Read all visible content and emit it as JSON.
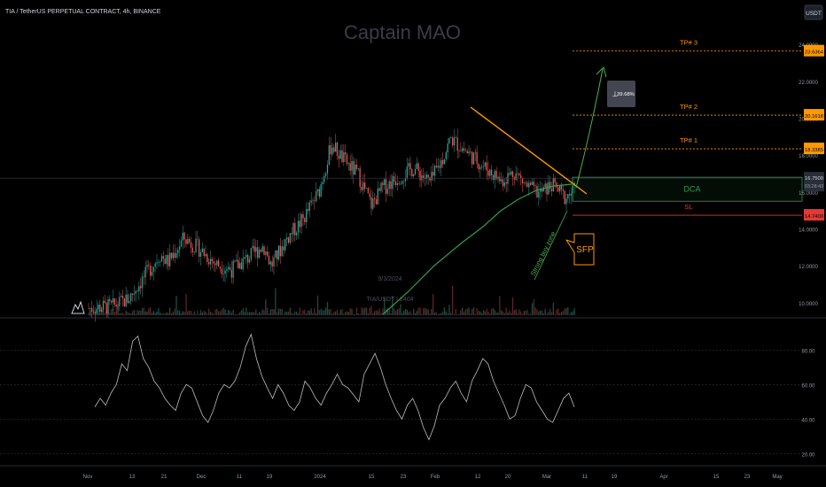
{
  "header": {
    "symbol_line": "TIA / TetherUS PERPETUAL CONTRACT, 4h, BINANCE",
    "currency": "USDT"
  },
  "watermark": "Captain MAO",
  "faint_text": [
    "9/3/2024",
    "TIA/USDT | 2404"
  ],
  "colors": {
    "background": "#000000",
    "up": "#26a69a",
    "down": "#ef5350",
    "ma": "#2e9e52",
    "tp": "#ff9800",
    "sl": "#e53935",
    "dca": "#2e9e52",
    "trend": "#ff9800",
    "rsi": "#bdbdbd",
    "projection": "#4caf50"
  },
  "chart_data": [
    {
      "type": "candlestick",
      "title": "",
      "price_axis_ticks": [
        "24.0000",
        "22.0000",
        "20.0000",
        "18.0000",
        "16.0000",
        "14.0000",
        "12.0000",
        "10.0000"
      ],
      "ylim": [
        9.3,
        25.2
      ],
      "x_axis_ticks": [
        "Nov",
        "13",
        "21",
        "Dec",
        "11",
        "19",
        "2024",
        "15",
        "23",
        "Feb",
        "12",
        "20",
        "Mar",
        "11",
        "19",
        "Apr",
        "15",
        "23",
        "May"
      ],
      "close_path": [
        [
          0,
          9.7
        ],
        [
          15,
          9.8
        ],
        [
          25,
          10.2
        ],
        [
          35,
          11.4
        ],
        [
          45,
          12.6
        ],
        [
          50,
          12.2
        ],
        [
          60,
          13.5
        ],
        [
          70,
          12.9
        ],
        [
          80,
          12.1
        ],
        [
          90,
          11.8
        ],
        [
          100,
          12.4
        ],
        [
          110,
          13.1
        ],
        [
          115,
          12.0
        ],
        [
          125,
          13.5
        ],
        [
          135,
          14.5
        ],
        [
          145,
          16.0
        ],
        [
          153,
          18.6
        ],
        [
          160,
          17.8
        ],
        [
          170,
          16.9
        ],
        [
          178,
          15.3
        ],
        [
          185,
          16.2
        ],
        [
          195,
          16.8
        ],
        [
          205,
          17.3
        ],
        [
          215,
          16.5
        ],
        [
          223,
          17.8
        ],
        [
          228,
          18.9
        ],
        [
          235,
          18.4
        ],
        [
          242,
          17.9
        ],
        [
          250,
          17.3
        ],
        [
          260,
          16.6
        ],
        [
          268,
          17.1
        ],
        [
          276,
          16.3
        ],
        [
          284,
          15.9
        ],
        [
          292,
          16.4
        ],
        [
          300,
          15.7
        ],
        [
          306,
          16.1
        ]
      ],
      "current_price": "16.7500",
      "countdown": "03:28:43",
      "levels": [
        {
          "label": "TP# 3",
          "price": 23.6364,
          "tag": "23.6364"
        },
        {
          "label": "TP# 2",
          "price": 20.1618,
          "tag": "20.1618"
        },
        {
          "label": "TP# 1",
          "price": 18.3385,
          "tag": "18.3385"
        },
        {
          "label": "SL",
          "price": 14.74,
          "tag": "14.7400"
        }
      ],
      "dca_zone": {
        "label": "DCA",
        "low": 15.5,
        "high": 16.8
      },
      "projection_label": "39.68%",
      "annotations": [
        "SFP",
        "Strong buy zone"
      ]
    },
    {
      "type": "line",
      "title": "",
      "ylim": [
        15,
        95
      ],
      "y_axis_ticks": [
        "80.00",
        "60.00",
        "40.00",
        "20.00"
      ],
      "reference_lines": [
        80,
        60,
        40,
        20
      ],
      "points": [
        [
          0,
          47
        ],
        [
          4,
          52
        ],
        [
          8,
          48
        ],
        [
          12,
          55
        ],
        [
          16,
          60
        ],
        [
          20,
          72
        ],
        [
          24,
          68
        ],
        [
          28,
          85
        ],
        [
          32,
          88
        ],
        [
          36,
          75
        ],
        [
          40,
          70
        ],
        [
          44,
          62
        ],
        [
          48,
          58
        ],
        [
          52,
          52
        ],
        [
          56,
          48
        ],
        [
          60,
          45
        ],
        [
          64,
          55
        ],
        [
          68,
          60
        ],
        [
          72,
          58
        ],
        [
          76,
          50
        ],
        [
          80,
          42
        ],
        [
          84,
          38
        ],
        [
          88,
          45
        ],
        [
          92,
          55
        ],
        [
          96,
          60
        ],
        [
          100,
          58
        ],
        [
          104,
          62
        ],
        [
          108,
          70
        ],
        [
          112,
          82
        ],
        [
          116,
          89
        ],
        [
          120,
          75
        ],
        [
          124,
          65
        ],
        [
          128,
          58
        ],
        [
          132,
          52
        ],
        [
          136,
          60
        ],
        [
          140,
          55
        ],
        [
          144,
          48
        ],
        [
          148,
          45
        ],
        [
          152,
          50
        ],
        [
          156,
          62
        ],
        [
          160,
          58
        ],
        [
          164,
          52
        ],
        [
          168,
          48
        ],
        [
          172,
          55
        ],
        [
          176,
          60
        ],
        [
          180,
          66
        ],
        [
          184,
          60
        ],
        [
          188,
          58
        ],
        [
          192,
          54
        ],
        [
          196,
          50
        ],
        [
          200,
          66
        ],
        [
          204,
          72
        ],
        [
          208,
          78
        ],
        [
          212,
          70
        ],
        [
          216,
          60
        ],
        [
          220,
          52
        ],
        [
          224,
          45
        ],
        [
          228,
          40
        ],
        [
          232,
          48
        ],
        [
          236,
          52
        ],
        [
          240,
          45
        ],
        [
          244,
          35
        ],
        [
          248,
          28
        ],
        [
          252,
          36
        ],
        [
          256,
          48
        ],
        [
          260,
          52
        ],
        [
          264,
          58
        ],
        [
          268,
          62
        ],
        [
          272,
          55
        ],
        [
          276,
          50
        ],
        [
          280,
          62
        ],
        [
          284,
          68
        ],
        [
          288,
          75
        ],
        [
          292,
          72
        ],
        [
          296,
          62
        ],
        [
          300,
          55
        ],
        [
          304,
          48
        ],
        [
          308,
          40
        ],
        [
          312,
          42
        ],
        [
          316,
          52
        ],
        [
          320,
          60
        ],
        [
          324,
          58
        ],
        [
          328,
          50
        ],
        [
          332,
          45
        ],
        [
          336,
          40
        ],
        [
          340,
          38
        ],
        [
          344,
          45
        ],
        [
          348,
          52
        ],
        [
          352,
          55
        ],
        [
          356,
          47
        ]
      ]
    }
  ]
}
